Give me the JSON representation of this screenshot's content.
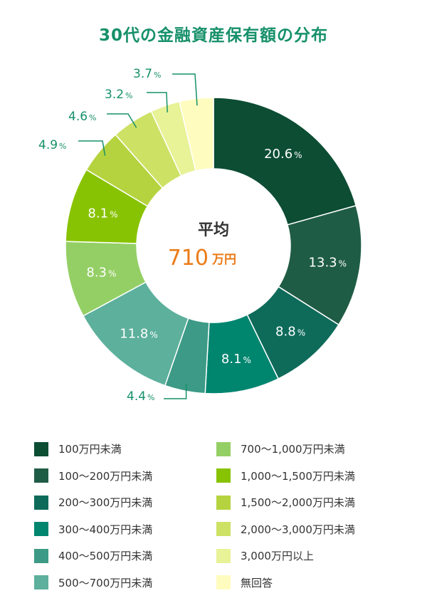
{
  "chart_data": {
    "type": "pie",
    "title": "30代の金融資産保有額の分布",
    "center": {
      "label": "平均",
      "value": "710",
      "unit": "万円"
    },
    "slices": [
      {
        "label": "100万円未満",
        "value": 20.6,
        "display": "20.6",
        "color": "#0c4d34"
      },
      {
        "label": "100〜200万円未満",
        "value": 13.3,
        "display": "13.3",
        "color": "#1f5c46"
      },
      {
        "label": "200〜300万円未満",
        "value": 8.8,
        "display": "8.8",
        "color": "#0e6b5a"
      },
      {
        "label": "300〜400万円未満",
        "value": 8.1,
        "display": "8.1",
        "color": "#00856f"
      },
      {
        "label": "400〜500万円未満",
        "value": 4.4,
        "display": "4.4",
        "color": "#3c9a86"
      },
      {
        "label": "500〜700万円未満",
        "value": 11.8,
        "display": "11.8",
        "color": "#5cb09c"
      },
      {
        "label": "700〜1,000万円未満",
        "value": 8.3,
        "display": "8.3",
        "color": "#94cf65"
      },
      {
        "label": "1,000〜1,500万円未満",
        "value": 8.1,
        "display": "8.1",
        "color": "#88c303"
      },
      {
        "label": "1,500〜2,000万円未満",
        "value": 4.9,
        "display": "4.9",
        "color": "#b5d33f"
      },
      {
        "label": "2,000〜3,000万円未満",
        "value": 4.6,
        "display": "4.6",
        "color": "#cde165"
      },
      {
        "label": "3,000万円以上",
        "value": 3.2,
        "display": "3.2",
        "color": "#e8f297"
      },
      {
        "label": "無回答",
        "value": 3.7,
        "display": "3.7",
        "color": "#fffcbf"
      }
    ],
    "value_suffix": "%",
    "label_color_outside": "#16906a",
    "center_value_color": "#ec7a16"
  }
}
